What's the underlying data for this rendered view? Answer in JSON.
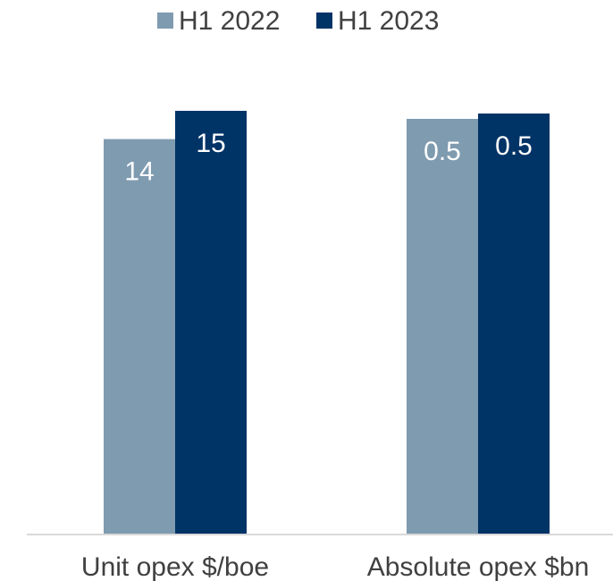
{
  "chart_data": {
    "type": "bar",
    "categories": [
      "Unit opex $/boe",
      "Absolute opex $bn"
    ],
    "series": [
      {
        "name": "H1 2022",
        "color": "#7f9bb0",
        "values": [
          14,
          0.5
        ],
        "labels": [
          "14",
          "0.5"
        ]
      },
      {
        "name": "H1 2023",
        "color": "#003366",
        "values": [
          15,
          0.5
        ],
        "labels": [
          "15",
          "0.5"
        ]
      }
    ],
    "legend_position": "top-center",
    "grid": false,
    "title": "",
    "xlabel": "",
    "ylabel": ""
  }
}
